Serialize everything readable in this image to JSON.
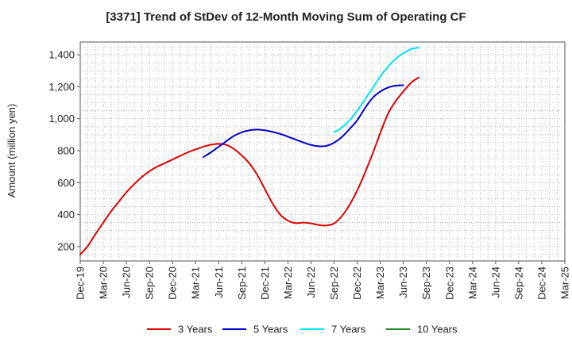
{
  "chart_data": {
    "type": "line",
    "title": "[3371]  Trend of StDev of 12-Month Moving Sum of Operating CF",
    "ylabel": "Amount (million yen)",
    "xlabel": "",
    "ylim": [
      110,
      1480
    ],
    "yticks": [
      200,
      400,
      600,
      800,
      1000,
      1200,
      1400
    ],
    "ytick_labels": [
      "200",
      "400",
      "600",
      "800",
      "1,000",
      "1,200",
      "1,400"
    ],
    "x_start": "Dec-19",
    "x_end": "Mar-25",
    "xtick_labels": [
      "Dec-19",
      "Mar-20",
      "Jun-20",
      "Sep-20",
      "Dec-20",
      "Mar-21",
      "Jun-21",
      "Sep-21",
      "Dec-21",
      "Mar-22",
      "Jun-22",
      "Sep-22",
      "Dec-22",
      "Mar-23",
      "Jun-23",
      "Sep-23",
      "Dec-23",
      "Mar-24",
      "Jun-24",
      "Sep-24",
      "Dec-24",
      "Mar-25"
    ],
    "grid": true,
    "legend_position": "bottom",
    "series": [
      {
        "name": "3 Years",
        "color": "#dd0000",
        "points": [
          [
            0,
            150
          ],
          [
            1,
            205
          ],
          [
            2,
            280
          ],
          [
            3,
            350
          ],
          [
            4,
            420
          ],
          [
            5,
            480
          ],
          [
            6,
            540
          ],
          [
            7,
            590
          ],
          [
            8,
            635
          ],
          [
            9,
            672
          ],
          [
            10,
            700
          ],
          [
            11,
            722
          ],
          [
            12,
            745
          ],
          [
            13,
            768
          ],
          [
            14,
            790
          ],
          [
            15,
            808
          ],
          [
            16,
            825
          ],
          [
            17,
            838
          ],
          [
            18,
            843
          ],
          [
            19,
            836
          ],
          [
            20,
            810
          ],
          [
            21,
            770
          ],
          [
            22,
            720
          ],
          [
            23,
            650
          ],
          [
            24,
            560
          ],
          [
            25,
            470
          ],
          [
            26,
            400
          ],
          [
            27,
            362
          ],
          [
            28,
            347
          ],
          [
            29,
            350
          ],
          [
            30,
            345
          ],
          [
            31,
            335
          ],
          [
            32,
            332
          ],
          [
            33,
            345
          ],
          [
            34,
            390
          ],
          [
            35,
            460
          ],
          [
            36,
            550
          ],
          [
            37,
            660
          ],
          [
            38,
            780
          ],
          [
            39,
            910
          ],
          [
            40,
            1030
          ],
          [
            41,
            1110
          ],
          [
            42,
            1170
          ],
          [
            43,
            1225
          ],
          [
            44,
            1258
          ]
        ]
      },
      {
        "name": "5 Years",
        "color": "#0000cc",
        "points": [
          [
            16,
            760
          ],
          [
            17,
            790
          ],
          [
            18,
            825
          ],
          [
            19,
            860
          ],
          [
            20,
            893
          ],
          [
            21,
            915
          ],
          [
            22,
            928
          ],
          [
            23,
            932
          ],
          [
            24,
            928
          ],
          [
            25,
            918
          ],
          [
            26,
            905
          ],
          [
            27,
            888
          ],
          [
            28,
            870
          ],
          [
            29,
            852
          ],
          [
            30,
            836
          ],
          [
            31,
            828
          ],
          [
            32,
            830
          ],
          [
            33,
            850
          ],
          [
            34,
            885
          ],
          [
            35,
            935
          ],
          [
            36,
            990
          ],
          [
            37,
            1065
          ],
          [
            38,
            1130
          ],
          [
            39,
            1170
          ],
          [
            40,
            1195
          ],
          [
            41,
            1207
          ],
          [
            42,
            1210
          ]
        ]
      },
      {
        "name": "7 Years",
        "color": "#00e5ee",
        "points": [
          [
            33,
            915
          ],
          [
            34,
            945
          ],
          [
            35,
            990
          ],
          [
            36,
            1050
          ],
          [
            37,
            1120
          ],
          [
            38,
            1190
          ],
          [
            39,
            1265
          ],
          [
            40,
            1325
          ],
          [
            41,
            1375
          ],
          [
            42,
            1410
          ],
          [
            43,
            1435
          ],
          [
            44,
            1445
          ]
        ]
      },
      {
        "name": "10 Years",
        "color": "#228b22",
        "points": []
      }
    ]
  }
}
